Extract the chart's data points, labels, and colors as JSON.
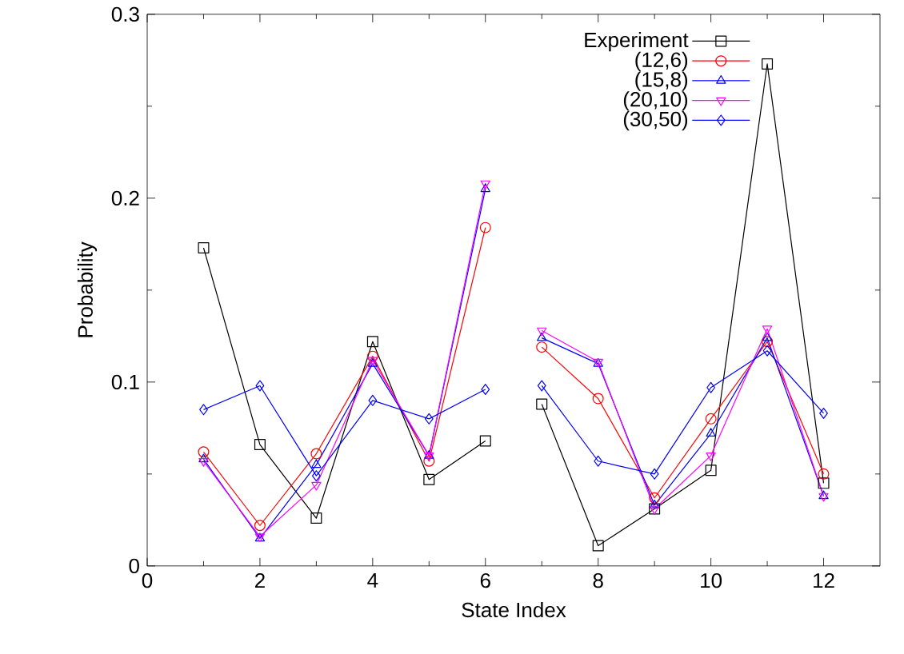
{
  "chart_data": {
    "type": "line",
    "xlabel": "State Index",
    "ylabel": "Probability",
    "x": [
      1,
      2,
      3,
      4,
      5,
      6,
      6.5,
      7,
      8,
      9,
      10,
      11,
      12
    ],
    "xlim": [
      0,
      13
    ],
    "xticks": [
      0,
      2,
      4,
      6,
      8,
      10,
      12
    ],
    "ylim": [
      0,
      0.3
    ],
    "yticks": [
      0,
      0.1,
      0.2,
      0.3
    ],
    "grid": false,
    "legend": "top right",
    "line_style": "solid",
    "series": [
      {
        "name": "Experiment",
        "color": "#000000",
        "marker": "square",
        "values": [
          0.173,
          0.066,
          0.026,
          0.122,
          0.047,
          0.068,
          null,
          0.088,
          0.011,
          0.031,
          0.052,
          0.273,
          0.045
        ]
      },
      {
        "name": "(12,6)",
        "color": "#ff0000",
        "marker": "circle",
        "values": [
          0.062,
          0.022,
          0.061,
          0.114,
          0.057,
          0.184,
          null,
          0.119,
          0.091,
          0.037,
          0.08,
          0.122,
          0.05
        ]
      },
      {
        "name": "(15,8)",
        "color": "#0000ff",
        "marker": "triangle",
        "values": [
          0.058,
          0.015,
          0.055,
          0.11,
          0.06,
          0.205,
          null,
          0.124,
          0.11,
          0.033,
          0.072,
          0.124,
          0.038
        ]
      },
      {
        "name": "(20,10)",
        "color": "#ff00ff",
        "marker": "triangle-down",
        "values": [
          0.057,
          0.016,
          0.044,
          0.112,
          0.06,
          0.208,
          null,
          0.128,
          0.111,
          0.031,
          0.06,
          0.129,
          0.038
        ]
      },
      {
        "name": "(30,50)",
        "color": "#0000ff",
        "marker": "diamond",
        "values": [
          0.085,
          0.098,
          0.049,
          0.09,
          0.08,
          0.096,
          null,
          0.098,
          0.057,
          0.05,
          0.097,
          0.117,
          0.083
        ]
      }
    ]
  }
}
